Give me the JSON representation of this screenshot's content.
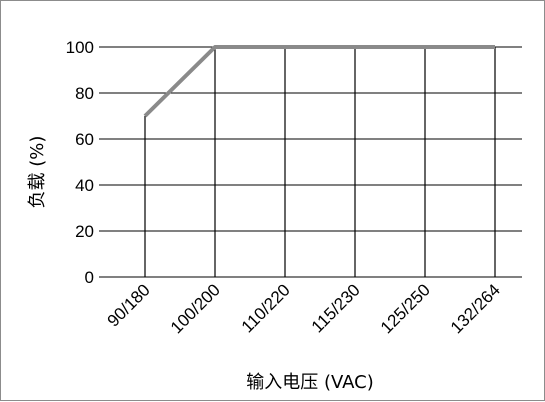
{
  "chart_data": {
    "type": "line",
    "categories": [
      "90/180",
      "100/200",
      "110/220",
      "115/230",
      "125/250",
      "132/264"
    ],
    "series": [
      {
        "values": [
          70,
          100,
          100,
          100,
          100,
          100
        ]
      }
    ],
    "xlabel": "输入电压 (VAC)",
    "ylabel": "负载 (%)",
    "ylim": [
      0,
      100
    ],
    "yticks": [
      "0",
      "20",
      "40",
      "60",
      "80",
      "100"
    ],
    "grid": true,
    "line_color": "#8a8a8a",
    "grid_color": "#000000"
  }
}
